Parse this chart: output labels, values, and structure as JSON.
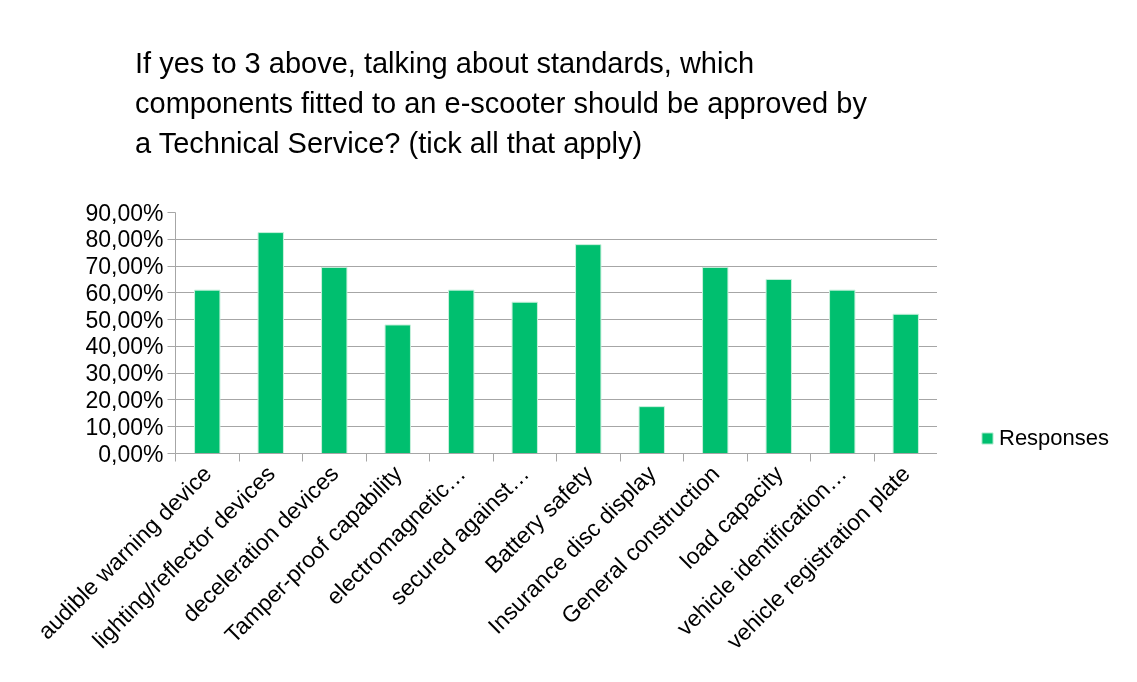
{
  "chart_data": {
    "type": "bar",
    "title": "If yes to 3 above, talking about standards, which components fitted to an e-scooter should be approved by a Technical Service? (tick all that apply)",
    "categories": [
      "audible warning device",
      "lighting/reflector devices",
      "deceleration devices",
      "Tamper-proof capability",
      "electromagnetic…",
      "secured against…",
      "Battery safety",
      "Insurance disc display",
      "General construction",
      "load capacity",
      "vehicle identification…",
      "vehicle registration plate"
    ],
    "series": [
      {
        "name": "Responses",
        "color": "#00bf6f",
        "values": [
          61,
          82.5,
          69.5,
          48,
          61,
          56.5,
          78,
          17.5,
          69.5,
          65,
          61,
          52
        ]
      }
    ],
    "ylim": [
      0,
      90
    ],
    "yticks": [
      {
        "value": 0,
        "label": "0,00%"
      },
      {
        "value": 10,
        "label": "10,00%"
      },
      {
        "value": 20,
        "label": "20,00%"
      },
      {
        "value": 30,
        "label": "30,00%"
      },
      {
        "value": 40,
        "label": "40,00%"
      },
      {
        "value": 50,
        "label": "50,00%"
      },
      {
        "value": 60,
        "label": "60,00%"
      },
      {
        "value": 70,
        "label": "70,00%"
      },
      {
        "value": 80,
        "label": "80,00%"
      },
      {
        "value": 90,
        "label": "90,00%"
      }
    ],
    "grid": "y",
    "legend": "right"
  }
}
